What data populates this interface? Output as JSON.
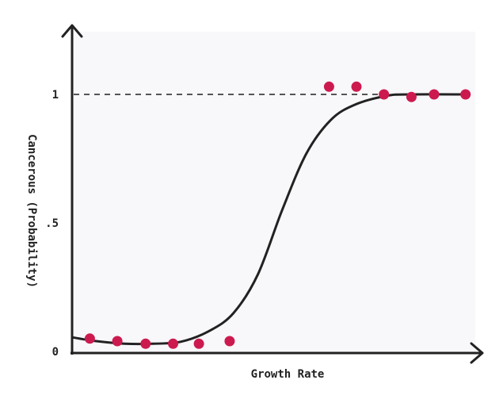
{
  "colors": {
    "background": "#ffffff",
    "plot_area": "#f8f7fa",
    "axis": "#222222",
    "curve": "#222222",
    "reference_line": "#555555",
    "point": "#cc1a4f"
  },
  "chart_data": {
    "type": "scatter",
    "title": "",
    "xlabel": "Growth Rate",
    "ylabel": "Cancerous (Probability)",
    "xlim": [
      0,
      100
    ],
    "ylim": [
      0,
      1.2
    ],
    "y_ticks": [
      {
        "value": 0,
        "label": "0"
      },
      {
        "value": 0.5,
        "label": ".5"
      },
      {
        "value": 1,
        "label": "1"
      }
    ],
    "x_ticks": [],
    "grid": false,
    "reference_line": {
      "y": 1,
      "style": "dashed"
    },
    "series": [
      {
        "type": "scatter",
        "points": [
          {
            "x": 4.4,
            "y": 0.05
          },
          {
            "x": 11.2,
            "y": 0.04
          },
          {
            "x": 18.2,
            "y": 0.03
          },
          {
            "x": 25.0,
            "y": 0.03
          },
          {
            "x": 31.4,
            "y": 0.03
          },
          {
            "x": 39.0,
            "y": 0.04
          },
          {
            "x": 63.6,
            "y": 1.03
          },
          {
            "x": 70.4,
            "y": 1.03
          },
          {
            "x": 77.2,
            "y": 1.0
          },
          {
            "x": 84.0,
            "y": 0.99
          },
          {
            "x": 89.6,
            "y": 1.0
          },
          {
            "x": 97.4,
            "y": 1.0
          }
        ]
      },
      {
        "type": "line",
        "smooth": true,
        "points": [
          {
            "x": 0,
            "y": 0.055
          },
          {
            "x": 6,
            "y": 0.04
          },
          {
            "x": 13,
            "y": 0.03
          },
          {
            "x": 20,
            "y": 0.03
          },
          {
            "x": 27,
            "y": 0.038
          },
          {
            "x": 34,
            "y": 0.08
          },
          {
            "x": 40,
            "y": 0.15
          },
          {
            "x": 46,
            "y": 0.3
          },
          {
            "x": 52,
            "y": 0.55
          },
          {
            "x": 58,
            "y": 0.77
          },
          {
            "x": 64,
            "y": 0.9
          },
          {
            "x": 70,
            "y": 0.96
          },
          {
            "x": 78,
            "y": 0.995
          },
          {
            "x": 84,
            "y": 1.0
          },
          {
            "x": 98,
            "y": 1.0
          }
        ]
      }
    ]
  }
}
